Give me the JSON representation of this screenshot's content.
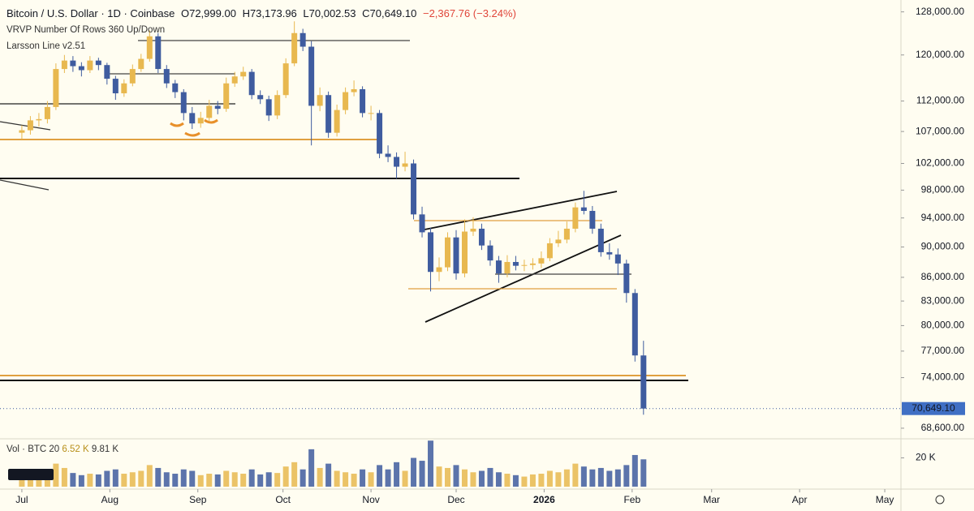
{
  "chart_data": {
    "type": "candlestick",
    "header": {
      "symbol": "Bitcoin / U.S. Dollar · 1D · Coinbase",
      "open": "O72,999.00",
      "high": "H73,173.96",
      "low": "L70,002.53",
      "close": "C70,649.10",
      "change": "−2,367.76 (−3.24%)"
    },
    "indicators": [
      "VRVP Number Of Rows 360 Up/Down",
      "Larsson Line v2.51"
    ],
    "volume_legend": {
      "title": "Vol · BTC 20",
      "value_1": "6.52 K",
      "value_2": "9.81 K"
    },
    "log_scale": true,
    "up_color": "#e8b84f",
    "down_color": "#3f5c9f",
    "ylim": [
      67600,
      130300
    ],
    "yticks": [
      {
        "value": 128000,
        "label": "128,000.00"
      },
      {
        "value": 120000,
        "label": "120,000.00"
      },
      {
        "value": 112000,
        "label": "112,000.00"
      },
      {
        "value": 107000,
        "label": "107,000.00"
      },
      {
        "value": 102000,
        "label": "102,000.00"
      },
      {
        "value": 98000,
        "label": "98,000.00"
      },
      {
        "value": 94000,
        "label": "94,000.00"
      },
      {
        "value": 90000,
        "label": "90,000.00"
      },
      {
        "value": 86000,
        "label": "86,000.00"
      },
      {
        "value": 83000,
        "label": "83,000.00"
      },
      {
        "value": 80000,
        "label": "80,000.00"
      },
      {
        "value": 77000,
        "label": "77,000.00"
      },
      {
        "value": 74000,
        "label": "74,000.00"
      },
      {
        "value": 68600,
        "label": "68,600.00"
      }
    ],
    "last_price": {
      "value": 70649.1,
      "label": "70,649.10"
    },
    "xlim": [
      -7.7,
      309.7
    ],
    "xticks": [
      {
        "value": 0,
        "label": "Jul"
      },
      {
        "value": 31,
        "label": "Aug"
      },
      {
        "value": 62,
        "label": "Sep"
      },
      {
        "value": 92,
        "label": "Oct"
      },
      {
        "value": 123,
        "label": "Nov"
      },
      {
        "value": 153,
        "label": "Dec"
      },
      {
        "value": 184,
        "label": "2026"
      },
      {
        "value": 215,
        "label": "Feb"
      },
      {
        "value": 243,
        "label": "Mar"
      },
      {
        "value": 274,
        "label": "Apr"
      },
      {
        "value": 304,
        "label": "May"
      }
    ],
    "x": [
      0,
      3,
      6,
      9,
      12,
      15,
      18,
      21,
      24,
      27,
      30,
      33,
      36,
      39,
      42,
      45,
      48,
      51,
      54,
      57,
      60,
      63,
      66,
      69,
      72,
      75,
      78,
      81,
      84,
      87,
      90,
      93,
      96,
      99,
      102,
      105,
      108,
      111,
      114,
      117,
      120,
      123,
      126,
      129,
      132,
      135,
      138,
      141,
      144,
      147,
      150,
      153,
      156,
      159,
      162,
      165,
      168,
      171,
      174,
      177,
      180,
      183,
      186,
      189,
      192,
      195,
      198,
      201,
      204,
      207,
      210,
      213,
      216,
      219
    ],
    "open": [
      106800,
      107200,
      108800,
      109000,
      111000,
      117500,
      119000,
      118000,
      117300,
      119000,
      118200,
      115800,
      113300,
      115000,
      117500,
      119300,
      123400,
      117500,
      115000,
      113500,
      110000,
      108300,
      109200,
      111200,
      110700,
      115000,
      116200,
      117000,
      113000,
      112300,
      109600,
      113000,
      118500,
      124000,
      121500,
      111200,
      113000,
      106800,
      110500,
      113500,
      114000,
      110000,
      110000,
      103500,
      103000,
      101500,
      102000,
      94500,
      92000,
      86700,
      87300,
      91300,
      86500,
      92100,
      92500,
      90200,
      88200,
      86500,
      88000,
      87500,
      87600,
      87800,
      88500,
      90500,
      91000,
      92500,
      95500,
      95000,
      92500,
      89300,
      89000,
      87800,
      84000,
      76500
    ],
    "high": [
      108000,
      109500,
      110000,
      112000,
      118500,
      120000,
      119800,
      118700,
      119800,
      119500,
      118600,
      116300,
      115700,
      118300,
      120200,
      124500,
      124000,
      118200,
      115600,
      114000,
      111000,
      110200,
      112200,
      112000,
      116000,
      117000,
      117900,
      117500,
      113800,
      112900,
      113800,
      119400,
      126200,
      124800,
      122500,
      114300,
      113600,
      111400,
      114300,
      115500,
      114500,
      111200,
      110500,
      104800,
      103700,
      103800,
      102600,
      95600,
      92600,
      88600,
      92000,
      92300,
      93800,
      94100,
      93200,
      90900,
      88800,
      88900,
      88800,
      88300,
      88500,
      89400,
      91200,
      92200,
      93500,
      96200,
      97900,
      95700,
      93200,
      90500,
      89800,
      88300,
      84500,
      78200
    ],
    "low": [
      105800,
      106500,
      107800,
      108300,
      110500,
      116800,
      117000,
      116200,
      116800,
      117300,
      114800,
      112200,
      112700,
      114500,
      117000,
      118800,
      116800,
      114200,
      112500,
      108800,
      107400,
      107600,
      108600,
      109800,
      110200,
      114400,
      115600,
      112300,
      111500,
      108700,
      109000,
      112500,
      118000,
      120700,
      104800,
      110300,
      106000,
      106200,
      109800,
      112800,
      109300,
      108800,
      102800,
      102200,
      99700,
      100800,
      93800,
      91300,
      84200,
      85500,
      86800,
      85700,
      86000,
      91500,
      89600,
      87500,
      85300,
      86000,
      86900,
      86800,
      87000,
      87200,
      88100,
      90000,
      90500,
      92000,
      94500,
      91800,
      88700,
      88300,
      86300,
      82800,
      75800,
      70000
    ],
    "close": [
      107200,
      108800,
      109000,
      111000,
      117500,
      119000,
      118000,
      117300,
      119000,
      118200,
      115800,
      113300,
      115000,
      117500,
      119300,
      123400,
      117500,
      115000,
      113500,
      110000,
      108300,
      109200,
      111200,
      110700,
      115000,
      116200,
      117000,
      113000,
      112300,
      109600,
      113000,
      118500,
      124000,
      121500,
      111200,
      113000,
      106800,
      110500,
      113500,
      114000,
      110000,
      110000,
      103500,
      103000,
      101500,
      102000,
      94500,
      92000,
      86700,
      87300,
      91300,
      86500,
      92100,
      92500,
      90200,
      88200,
      86500,
      88000,
      87500,
      87600,
      87800,
      88500,
      90500,
      91000,
      92500,
      95500,
      95000,
      92500,
      89300,
      89000,
      87800,
      84000,
      76500,
      70649
    ],
    "volume": [
      9000,
      8500,
      10000,
      12000,
      16000,
      13000,
      9500,
      8000,
      9000,
      8500,
      11000,
      12000,
      9000,
      10000,
      11000,
      15000,
      13000,
      10000,
      9000,
      12000,
      11000,
      8000,
      9000,
      8500,
      11000,
      10000,
      9000,
      12000,
      8500,
      10000,
      9500,
      14000,
      17000,
      12000,
      26000,
      13000,
      16000,
      11000,
      10000,
      9000,
      12000,
      10000,
      15000,
      12000,
      17000,
      11000,
      20000,
      18000,
      32000,
      14000,
      13000,
      15000,
      12000,
      10000,
      11000,
      13000,
      10000,
      9000,
      8000,
      7000,
      8500,
      9000,
      11000,
      10000,
      12000,
      16000,
      14000,
      12000,
      13000,
      11000,
      12000,
      15000,
      22000,
      19000
    ],
    "volume_ylim": [
      0,
      31000
    ],
    "volume_yticks": [
      {
        "value": 20000,
        "label": "20 K"
      }
    ]
  }
}
